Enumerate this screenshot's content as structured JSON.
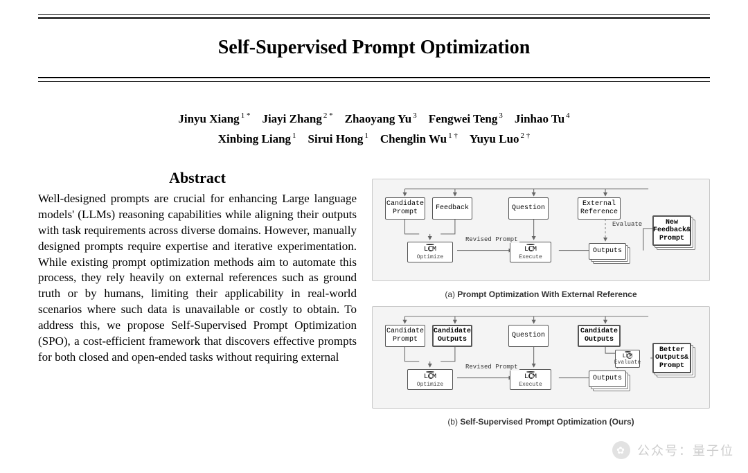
{
  "title": "Self-Supervised Prompt Optimization",
  "authors_line1_html": "Jinyu Xiang<sup>1 *</sup> Jiayi Zhang<sup>2 *</sup> Zhaoyang Yu<sup>3</sup> Fengwei Teng<sup>3</sup> Jinhao Tu<sup>4</sup>",
  "authors_line2_html": "Xinbing Liang<sup>1</sup> Sirui Hong<sup>1</sup> Chenglin Wu<sup>1 †</sup> Yuyu Luo<sup>2 †</sup>",
  "abstract_heading": "Abstract",
  "abstract_text": "Well-designed prompts are crucial for enhancing Large language models' (LLMs) reasoning capabilities while aligning their outputs with task requirements across diverse domains. However, manually designed prompts require expertise and iterative experimentation. While existing prompt optimization methods aim to automate this process, they rely heavily on external references such as ground truth or by humans, limiting their applicability in real-world scenarios where such data is unavailable or costly to obtain. To address this, we propose Self-Supervised Prompt Optimization (SPO), a cost-efficient framework that discovers effective prompts for both closed and open-ended tasks without requiring external",
  "figure": {
    "panel_a": {
      "caption_prefix": "(a) ",
      "caption_bold": "Prompt Optimization With External Reference",
      "nodes": {
        "candidate_prompt": "Candidate\nPrompt",
        "feedback": "Feedback",
        "question": "Question",
        "external_reference": "External\nReference",
        "llm_optimize": "LLM",
        "llm_optimize_sub": "Optimize",
        "llm_execute": "LLM",
        "llm_execute_sub": "Execute",
        "outputs": "Outputs",
        "result": "New\nFeedback&\nPrompt"
      },
      "edge_labels": {
        "revised_prompt": "Revised\nPrompt",
        "evaluate": "Evaluate"
      }
    },
    "panel_b": {
      "caption_prefix": "(b) ",
      "caption_bold": "Self-Supervised Prompt Optimization (Ours)",
      "nodes": {
        "candidate_prompt": "Candidate\nPrompt",
        "candidate_outputs_left": "Candidate\nOutputs",
        "question": "Question",
        "candidate_outputs_right": "Candidate\nOutputs",
        "llm_optimize": "LLM",
        "llm_optimize_sub": "Optimize",
        "llm_execute": "LLM",
        "llm_execute_sub": "Execute",
        "llm_evaluate": "LLM",
        "llm_evaluate_sub": "Evaluate",
        "outputs": "Outputs",
        "result": "Better\nOutputs&\nPrompt"
      },
      "edge_labels": {
        "revised_prompt": "Revised\nPrompt"
      }
    },
    "colors": {
      "panel_bg": "#f4f4f4",
      "panel_border": "#c8c8c8",
      "box_bg": "#ffffff",
      "box_border": "#555555",
      "arrow": "#666666",
      "arrow_dashed": "#888888"
    }
  },
  "watermark": {
    "label": "公众号：量子位",
    "icon": "wechat-icon"
  }
}
